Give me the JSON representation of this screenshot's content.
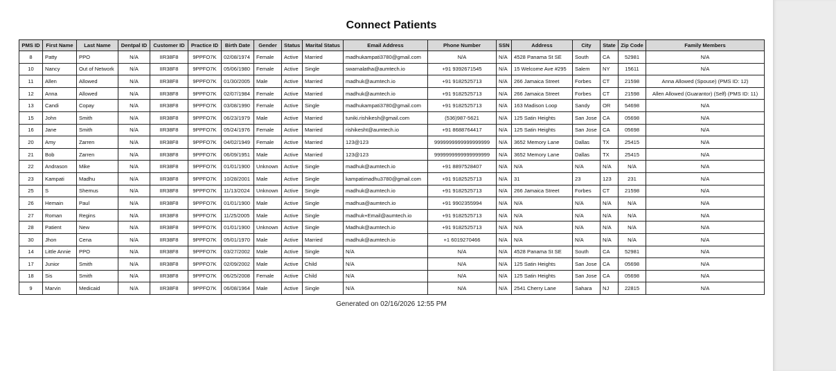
{
  "title": "Connect Patients",
  "table": {
    "headers": [
      "PMS ID",
      "First Name",
      "Last Name",
      "Dentpal ID",
      "Customer ID",
      "Practice ID",
      "Birth Date",
      "Gender",
      "Status",
      "Marital Status",
      "Email Address",
      "Phone Number",
      "SSN",
      "Address",
      "City",
      "State",
      "Zip Code",
      "Family Members"
    ],
    "rows": [
      [
        "8",
        "Patty",
        "PPO",
        "N/A",
        "IIR38F8",
        "9PPFO7K",
        "02/08/1974",
        "Female",
        "Active",
        "Married",
        "madhukampati3780@gmail.com",
        "N/A",
        "N/A",
        "4528 Panama St SE",
        "South",
        "CA",
        "52981",
        "N/A"
      ],
      [
        "10",
        "Nancy",
        "Out of Network",
        "N/A",
        "IIR38F8",
        "9PPFO7K",
        "05/06/1980",
        "Female",
        "Active",
        "Single",
        "swarnalatha@aumtech.io",
        "+91 9392671545",
        "N/A",
        "15 Welcome Ave #295",
        "Salem",
        "NY",
        "15611",
        "N/A"
      ],
      [
        "11",
        "Allen",
        "Allowed",
        "N/A",
        "IIR38F8",
        "9PPFO7K",
        "01/30/2005",
        "Male",
        "Active",
        "Married",
        "madhuk@aumtech.io",
        "+91 9182525713",
        "N/A",
        "266 Jamaica Street",
        "Forbes",
        "CT",
        "21598",
        "Anna Allowed (Spouse) (PMS ID: 12)"
      ],
      [
        "12",
        "Anna",
        "Allowed",
        "N/A",
        "IIR38F8",
        "9PPFO7K",
        "02/07/1984",
        "Female",
        "Active",
        "Married",
        "madhuk@aumtech.io",
        "+91 9182525713",
        "N/A",
        "266 Jamaica Street",
        "Forbes",
        "CT",
        "21598",
        "Allen Allowed (Guarantor) (Self) (PMS ID: 11)"
      ],
      [
        "13",
        "Candi",
        "Copay",
        "N/A",
        "IIR38F8",
        "9PPFO7K",
        "03/08/1990",
        "Female",
        "Active",
        "Single",
        "madhukampati3780@gmail.com",
        "+91 9182525713",
        "N/A",
        "163 Madison Loop",
        "Sandy",
        "OR",
        "54698",
        "N/A"
      ],
      [
        "15",
        "John",
        "Smith",
        "N/A",
        "IIR38F8",
        "9PPFO7K",
        "06/23/1979",
        "Male",
        "Active",
        "Married",
        "tuniki.rishikesh@gmail.com",
        "(536)987-5621",
        "N/A",
        "125 Satin Heights",
        "San Jose",
        "CA",
        "05698",
        "N/A"
      ],
      [
        "16",
        "Jane",
        "Smith",
        "N/A",
        "IIR38F8",
        "9PPFO7K",
        "05/24/1976",
        "Female",
        "Active",
        "Married",
        "rishikesht@aumtech.io",
        "+91 8688764417",
        "N/A",
        "125 Satin Heights",
        "San Jose",
        "CA",
        "05698",
        "N/A"
      ],
      [
        "20",
        "Amy",
        "Zarren",
        "N/A",
        "IIR38F8",
        "9PPFO7K",
        "04/02/1949",
        "Female",
        "Active",
        "Married",
        "123@123",
        "9999999999999999999",
        "N/A",
        "3652 Memory Lane",
        "Dallas",
        "TX",
        "25415",
        "N/A"
      ],
      [
        "21",
        "Bob",
        "Zarren",
        "N/A",
        "IIR38F8",
        "9PPFO7K",
        "06/09/1951",
        "Male",
        "Active",
        "Married",
        "123@123",
        "9999999999999999999",
        "N/A",
        "3652 Memory Lane",
        "Dallas",
        "TX",
        "25415",
        "N/A"
      ],
      [
        "22",
        "Andrason",
        "Mike",
        "N/A",
        "IIR38F8",
        "9PPFO7K",
        "01/01/1900",
        "Unknown",
        "Active",
        "Single",
        "madhuk@aumtech.io",
        "+91 8897528407",
        "N/A",
        "N/A",
        "N/A",
        "N/A",
        "N/A",
        "N/A"
      ],
      [
        "23",
        "Kampati",
        "Madhu",
        "N/A",
        "IIR38F8",
        "9PPFO7K",
        "10/28/2001",
        "Male",
        "Active",
        "Single",
        "kampatimadhu3780@gmail.com",
        "+91 9182525713",
        "N/A",
        "31",
        "23",
        "123",
        "231",
        "N/A"
      ],
      [
        "25",
        "S",
        "Shemus",
        "N/A",
        "IIR38F8",
        "9PPFO7K",
        "11/13/2024",
        "Unknown",
        "Active",
        "Single",
        "madhuk@aumtech.io",
        "+91 9182525713",
        "N/A",
        "266 Jamaica Street",
        "Forbes",
        "CT",
        "21598",
        "N/A"
      ],
      [
        "26",
        "Hemain",
        "Paul",
        "N/A",
        "IIR38F8",
        "9PPFO7K",
        "01/01/1900",
        "Male",
        "Active",
        "Single",
        "madhua@aumtech.io",
        "+91 9902355994",
        "N/A",
        "N/A",
        "N/A",
        "N/A",
        "N/A",
        "N/A"
      ],
      [
        "27",
        "Roman",
        "Regins",
        "N/A",
        "IIR38F8",
        "9PPFO7K",
        "11/25/2005",
        "Male",
        "Active",
        "Single",
        "madhuk+Email@aumtech.io",
        "+91 9182525713",
        "N/A",
        "N/A",
        "N/A",
        "N/A",
        "N/A",
        "N/A"
      ],
      [
        "28",
        "Patient",
        "New",
        "N/A",
        "IIR38F8",
        "9PPFO7K",
        "01/01/1900",
        "Unknown",
        "Active",
        "Single",
        "Madhuk@aumtech.io",
        "+91 9182525713",
        "N/A",
        "N/A",
        "N/A",
        "N/A",
        "N/A",
        "N/A"
      ],
      [
        "30",
        "Jhon",
        "Cena",
        "N/A",
        "IIR38F8",
        "9PPFO7K",
        "05/01/1970",
        "Male",
        "Active",
        "Married",
        "madhuk@aumtech.io",
        "+1 6019270466",
        "N/A",
        "N/A",
        "N/A",
        "N/A",
        "N/A",
        "N/A"
      ],
      [
        "14",
        "Little Annie",
        "PPO",
        "N/A",
        "IIR38F8",
        "9PPFO7K",
        "03/27/2002",
        "Male",
        "Active",
        "Single",
        "N/A",
        "N/A",
        "N/A",
        "4528 Panama St SE",
        "South",
        "CA",
        "52981",
        "N/A"
      ],
      [
        "17",
        "Junior",
        "Smith",
        "N/A",
        "IIR38F8",
        "9PPFO7K",
        "02/09/2002",
        "Male",
        "Active",
        "Child",
        "N/A",
        "N/A",
        "N/A",
        "125 Satin Heights",
        "San Jose",
        "CA",
        "05698",
        "N/A"
      ],
      [
        "18",
        "Sis",
        "Smith",
        "N/A",
        "IIR38F8",
        "9PPFO7K",
        "06/25/2008",
        "Female",
        "Active",
        "Child",
        "N/A",
        "N/A",
        "N/A",
        "125 Satin Heights",
        "San Jose",
        "CA",
        "05698",
        "N/A"
      ],
      [
        "9",
        "Marvin",
        "Medicaid",
        "N/A",
        "IIR38F8",
        "9PPFO7K",
        "06/08/1964",
        "Male",
        "Active",
        "Single",
        "N/A",
        "N/A",
        "N/A",
        "2541 Cherry Lane",
        "Sahara",
        "NJ",
        "22815",
        "N/A"
      ]
    ]
  },
  "footer": "Generated on 02/16/2026 12:55 PM"
}
